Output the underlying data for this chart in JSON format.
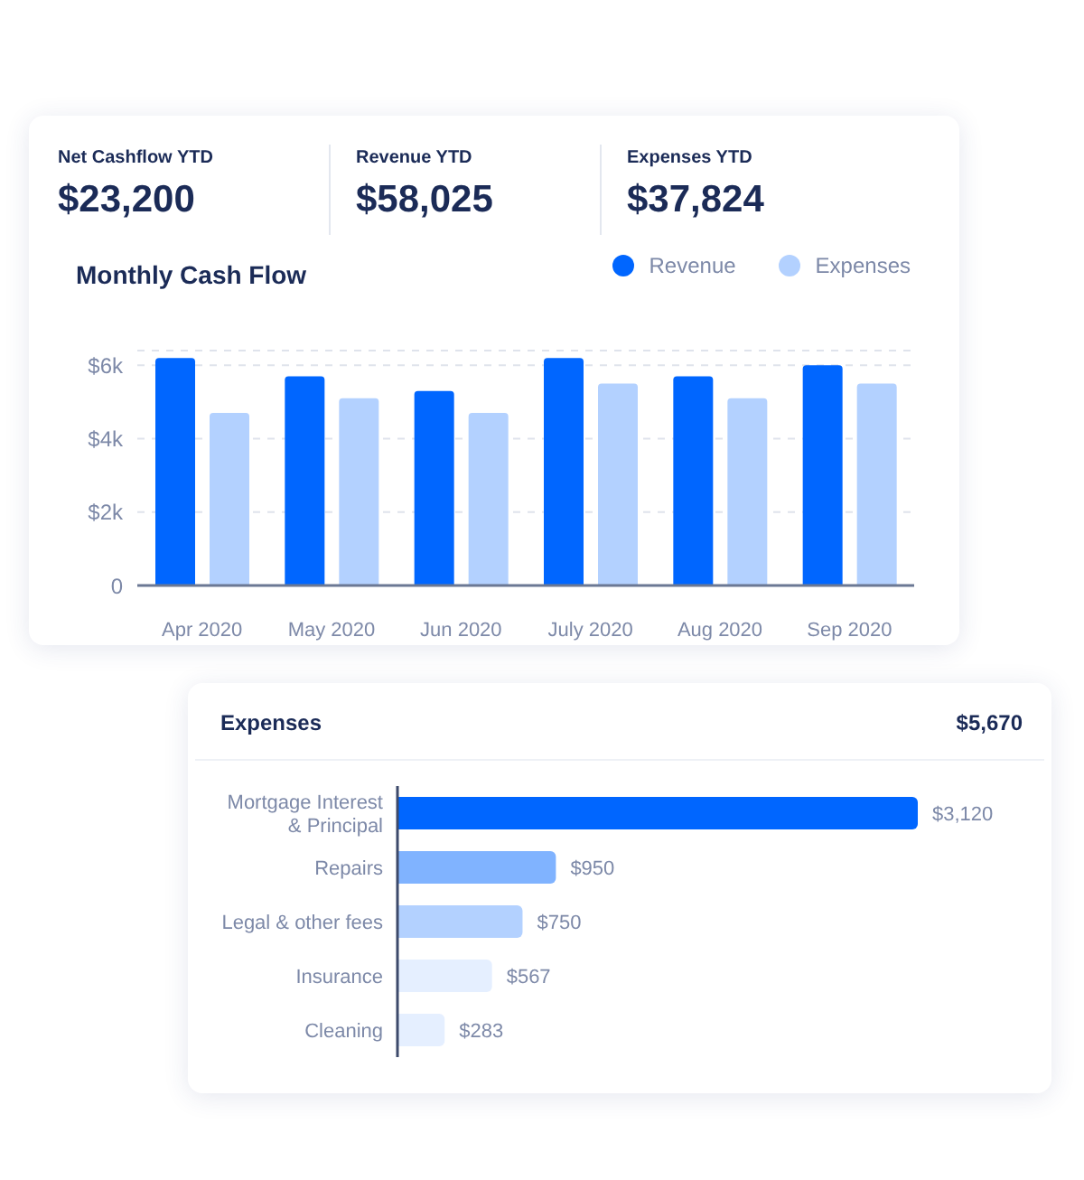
{
  "chart_data": [
    {
      "type": "other",
      "annotations": [
        "Net Cashflow YTD",
        "$23,200",
        "Revenue YTD",
        "$58,025",
        "Expenses YTD",
        "$37,824"
      ]
    },
    {
      "type": "bar",
      "title": "Monthly Cash Flow",
      "categories": [
        "Apr 2020",
        "May 2020",
        "Jun 2020",
        "July 2020",
        "Aug 2020",
        "Sep 2020"
      ],
      "series": [
        {
          "name": "Revenue",
          "color": "#0066ff",
          "values": [
            6200,
            5700,
            5300,
            6200,
            5700,
            6000
          ]
        },
        {
          "name": "Expenses",
          "color": "#b3d1ff",
          "values": [
            4700,
            5100,
            4700,
            5500,
            5100,
            5500
          ]
        }
      ],
      "ylim": [
        0,
        6400
      ],
      "yticks": [
        {
          "value": 0,
          "label": "0"
        },
        {
          "value": 2000,
          "label": "$2k"
        },
        {
          "value": 4000,
          "label": "$4k"
        },
        {
          "value": 6000,
          "label": "$6k"
        }
      ],
      "grid": "y",
      "legend": "top right"
    },
    {
      "type": "bar",
      "orientation": "horizontal",
      "title": "Expenses",
      "annotations": [
        "$5,670"
      ],
      "categories": [
        "Mortgage Interest & Principal",
        "Repairs",
        "Legal & other fees",
        "Insurance",
        "Cleaning"
      ],
      "values": [
        3120,
        950,
        750,
        567,
        283
      ],
      "colors": [
        "#0066ff",
        "#80b3ff",
        "#b3d1ff",
        "#e5efff",
        "#e5efff"
      ],
      "value_labels": [
        "$3,120",
        "$950",
        "$750",
        "$567",
        "$283"
      ],
      "tick_labels": "y"
    }
  ]
}
